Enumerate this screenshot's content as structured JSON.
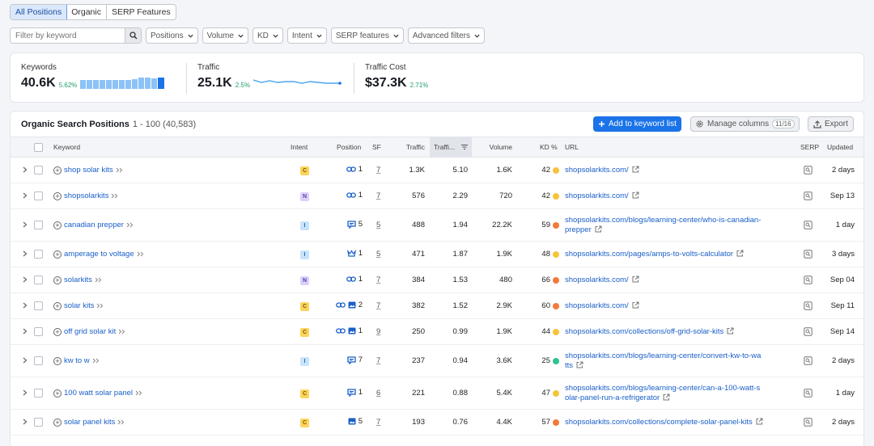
{
  "tabs": [
    {
      "label": "All Positions",
      "active": true
    },
    {
      "label": "Organic",
      "active": false
    },
    {
      "label": "SERP Features",
      "active": false
    }
  ],
  "search": {
    "placeholder": "Filter by keyword"
  },
  "filters": [
    "Positions",
    "Volume",
    "KD",
    "Intent",
    "SERP features",
    "Advanced filters"
  ],
  "summary": {
    "keywords": {
      "label": "Keywords",
      "value": "40.6K",
      "change": "5.62%"
    },
    "traffic": {
      "label": "Traffic",
      "value": "25.1K",
      "change": "2.5%"
    },
    "traffic_cost": {
      "label": "Traffic Cost",
      "value": "$37.3K",
      "change": "2.71%"
    }
  },
  "colors": {
    "accent": "#1a73e8",
    "positive": "#1f9d6b",
    "link": "#1a5fc8"
  },
  "table": {
    "title": "Organic Search Positions",
    "range": "1 - 100 (40,583)",
    "add_button": "Add to keyword list",
    "manage_columns": "Manage columns",
    "columns_count": "11/16",
    "export": "Export",
    "headers": {
      "keyword": "Keyword",
      "intent": "Intent",
      "position": "Position",
      "sf": "SF",
      "traffic": "Traffic",
      "traffic_pct": "Traffi...",
      "volume": "Volume",
      "kd": "KD %",
      "url": "URL",
      "serp": "SERP",
      "updated": "Updated"
    },
    "rows": [
      {
        "keyword": "shop solar kits",
        "intent": "C",
        "pos_icons": [
          "link-icon"
        ],
        "position": "1",
        "sf": "7",
        "traffic": "1.3K",
        "traffic_pct": "5.10",
        "volume": "1.6K",
        "kd": "42",
        "kd_color": "#f5c33b",
        "url": [
          "shopsolarkits.com/"
        ],
        "updated": "2 days"
      },
      {
        "keyword": "shopsolarkits",
        "intent": "N",
        "pos_icons": [
          "link-icon"
        ],
        "position": "1",
        "sf": "7",
        "traffic": "576",
        "traffic_pct": "2.29",
        "volume": "720",
        "kd": "42",
        "kd_color": "#f5c33b",
        "url": [
          "shopsolarkits.com/"
        ],
        "updated": "Sep 13"
      },
      {
        "keyword": "canadian prepper",
        "intent": "I",
        "pos_icons": [
          "featured-snippet-icon"
        ],
        "position": "5",
        "sf": "5",
        "traffic": "488",
        "traffic_pct": "1.94",
        "volume": "22.2K",
        "kd": "59",
        "kd_color": "#f27a3a",
        "url": [
          "shopsolarkits.com/blogs/learning-center/who-is-canadian-",
          "prepper"
        ],
        "updated": "1 day"
      },
      {
        "keyword": "amperage to voltage",
        "intent": "I",
        "pos_icons": [
          "crown-icon"
        ],
        "position": "1",
        "sf": "5",
        "traffic": "471",
        "traffic_pct": "1.87",
        "volume": "1.9K",
        "kd": "48",
        "kd_color": "#f5c33b",
        "url": [
          "shopsolarkits.com/pages/amps-to-volts-calculator"
        ],
        "updated": "3 days"
      },
      {
        "keyword": "solarkits",
        "intent": "N",
        "pos_icons": [
          "link-icon"
        ],
        "position": "1",
        "sf": "7",
        "traffic": "384",
        "traffic_pct": "1.53",
        "volume": "480",
        "kd": "66",
        "kd_color": "#f27a3a",
        "url": [
          "shopsolarkits.com/"
        ],
        "updated": "Sep 04"
      },
      {
        "keyword": "solar kits",
        "intent": "C",
        "pos_icons": [
          "link-icon",
          "image-icon"
        ],
        "position": "2",
        "sf": "7",
        "traffic": "382",
        "traffic_pct": "1.52",
        "volume": "2.9K",
        "kd": "60",
        "kd_color": "#f27a3a",
        "url": [
          "shopsolarkits.com/"
        ],
        "updated": "Sep 11"
      },
      {
        "keyword": "off grid solar kit",
        "intent": "C",
        "pos_icons": [
          "link-icon",
          "image-icon"
        ],
        "position": "1",
        "sf": "9",
        "traffic": "250",
        "traffic_pct": "0.99",
        "volume": "1.9K",
        "kd": "44",
        "kd_color": "#f5c33b",
        "url": [
          "shopsolarkits.com/collections/off-grid-solar-kits"
        ],
        "updated": "Sep 14"
      },
      {
        "keyword": "kw to w",
        "intent": "I",
        "pos_icons": [
          "featured-snippet-icon"
        ],
        "position": "7",
        "sf": "7",
        "traffic": "237",
        "traffic_pct": "0.94",
        "volume": "3.6K",
        "kd": "25",
        "kd_color": "#2fc48d",
        "url": [
          "shopsolarkits.com/blogs/learning-center/convert-kw-to-wa",
          "tts"
        ],
        "updated": "2 days"
      },
      {
        "keyword": "100 watt solar panel",
        "intent": "C",
        "pos_icons": [
          "featured-snippet-icon"
        ],
        "position": "1",
        "sf": "6",
        "traffic": "221",
        "traffic_pct": "0.88",
        "volume": "5.4K",
        "kd": "47",
        "kd_color": "#f5c33b",
        "url": [
          "shopsolarkits.com/blogs/learning-center/can-a-100-watt-s",
          "olar-panel-run-a-refrigerator"
        ],
        "updated": "1 day"
      },
      {
        "keyword": "solar panel kits",
        "intent": "C",
        "pos_icons": [
          "image-icon"
        ],
        "position": "5",
        "sf": "7",
        "traffic": "193",
        "traffic_pct": "0.76",
        "volume": "4.4K",
        "kd": "57",
        "kd_color": "#f27a3a",
        "url": [
          "shopsolarkits.com/collections/complete-solar-panel-kits"
        ],
        "updated": "2 days"
      }
    ]
  }
}
